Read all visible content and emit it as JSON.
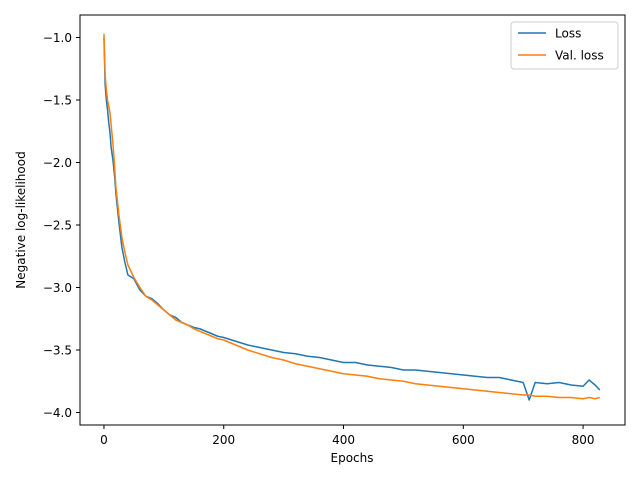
{
  "chart_data": {
    "type": "line",
    "title": "",
    "xlabel": "Epochs",
    "ylabel": "Negative log-likelihood",
    "xlim": [
      -40,
      870
    ],
    "ylim": [
      -4.1,
      -0.82
    ],
    "xticks": [
      0,
      200,
      400,
      600,
      800
    ],
    "xtick_labels": [
      "0",
      "200",
      "400",
      "600",
      "800"
    ],
    "yticks": [
      -1.0,
      -1.5,
      -2.0,
      -2.5,
      -3.0,
      -3.5,
      -4.0
    ],
    "ytick_labels": [
      "−1.0",
      "−1.5",
      "−2.0",
      "−2.5",
      "−3.0",
      "−3.5",
      "−4.0"
    ],
    "grid": false,
    "legend_position": "top-right",
    "series": [
      {
        "name": "Loss",
        "color": "#1f77b4",
        "x": [
          0,
          2,
          4,
          6,
          8,
          10,
          12,
          15,
          18,
          20,
          25,
          30,
          35,
          40,
          50,
          60,
          70,
          80,
          90,
          100,
          110,
          120,
          130,
          140,
          150,
          160,
          170,
          180,
          190,
          200,
          220,
          240,
          260,
          280,
          300,
          320,
          340,
          360,
          380,
          400,
          420,
          440,
          460,
          480,
          500,
          520,
          540,
          560,
          580,
          600,
          620,
          640,
          660,
          680,
          700,
          710,
          720,
          740,
          760,
          780,
          800,
          810,
          820,
          828
        ],
        "y": [
          -1.0,
          -1.38,
          -1.5,
          -1.58,
          -1.68,
          -1.76,
          -1.88,
          -1.98,
          -2.12,
          -2.25,
          -2.48,
          -2.68,
          -2.8,
          -2.9,
          -2.93,
          -3.02,
          -3.07,
          -3.09,
          -3.13,
          -3.18,
          -3.22,
          -3.24,
          -3.28,
          -3.3,
          -3.32,
          -3.33,
          -3.35,
          -3.37,
          -3.39,
          -3.4,
          -3.43,
          -3.46,
          -3.48,
          -3.5,
          -3.52,
          -3.53,
          -3.55,
          -3.56,
          -3.58,
          -3.6,
          -3.6,
          -3.62,
          -3.63,
          -3.64,
          -3.66,
          -3.66,
          -3.67,
          -3.68,
          -3.69,
          -3.7,
          -3.71,
          -3.72,
          -3.72,
          -3.74,
          -3.76,
          -3.9,
          -3.76,
          -3.77,
          -3.76,
          -3.78,
          -3.79,
          -3.74,
          -3.78,
          -3.82
        ]
      },
      {
        "name": "Val. loss",
        "color": "#ff7f0e",
        "x": [
          0,
          2,
          4,
          6,
          8,
          10,
          12,
          15,
          18,
          20,
          25,
          30,
          35,
          40,
          50,
          60,
          70,
          80,
          90,
          100,
          110,
          120,
          130,
          140,
          150,
          160,
          170,
          180,
          190,
          200,
          220,
          240,
          260,
          280,
          300,
          320,
          340,
          360,
          380,
          400,
          420,
          440,
          460,
          480,
          500,
          520,
          540,
          560,
          580,
          600,
          620,
          640,
          660,
          680,
          700,
          710,
          720,
          740,
          760,
          780,
          800,
          810,
          820,
          828
        ],
        "y": [
          -0.97,
          -1.3,
          -1.42,
          -1.5,
          -1.55,
          -1.6,
          -1.7,
          -1.85,
          -2.05,
          -2.2,
          -2.42,
          -2.6,
          -2.72,
          -2.82,
          -2.92,
          -3.0,
          -3.07,
          -3.1,
          -3.14,
          -3.18,
          -3.22,
          -3.26,
          -3.28,
          -3.3,
          -3.33,
          -3.35,
          -3.37,
          -3.39,
          -3.41,
          -3.42,
          -3.46,
          -3.5,
          -3.53,
          -3.56,
          -3.58,
          -3.61,
          -3.63,
          -3.65,
          -3.67,
          -3.69,
          -3.7,
          -3.71,
          -3.73,
          -3.74,
          -3.75,
          -3.77,
          -3.78,
          -3.79,
          -3.8,
          -3.81,
          -3.82,
          -3.83,
          -3.84,
          -3.85,
          -3.86,
          -3.86,
          -3.87,
          -3.87,
          -3.88,
          -3.88,
          -3.89,
          -3.88,
          -3.89,
          -3.88
        ]
      }
    ]
  }
}
